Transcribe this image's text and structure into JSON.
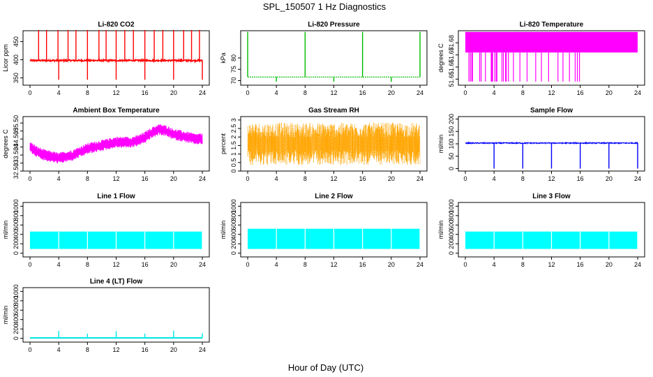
{
  "figure": {
    "title": "SPL_150507  1 Hz Diagnostics",
    "xlabel": "Hour of Day (UTC)"
  },
  "chart_data": [
    {
      "id": "co2",
      "type": "line",
      "title": "Li-820 CO2",
      "xlabel": "",
      "ylabel": "Licor ppm",
      "color": "#ff0000",
      "xlim": [
        0,
        24
      ],
      "ylim": [
        330,
        480
      ],
      "xticks": [
        0,
        4,
        8,
        12,
        16,
        20,
        24
      ],
      "yticks": [
        350,
        400,
        450
      ],
      "baseline": 398,
      "noise": 4,
      "spikes_up": [
        1.2,
        2.3,
        3.9,
        5.3,
        6.4,
        8.0,
        9.6,
        10.6,
        12.0,
        13.2,
        14.4,
        16.0,
        17.3,
        18.5,
        20.0,
        21.4,
        22.5,
        23.6
      ],
      "spike_up_value": 482,
      "spikes_down": [
        4.0,
        8.0,
        12.0,
        16.0,
        20.0,
        24.0
      ],
      "spike_down_value": 345
    },
    {
      "id": "pressure",
      "type": "line",
      "title": "Li-820 Pressure",
      "xlabel": "",
      "ylabel": "kPa",
      "color": "#00bb00",
      "xlim": [
        0,
        24
      ],
      "ylim": [
        68,
        92
      ],
      "xticks": [
        0,
        4,
        8,
        12,
        16,
        20,
        24
      ],
      "yticks": [
        70,
        75,
        80
      ],
      "baseline": 71.6,
      "spikes_up": [
        0.0,
        8.0,
        16.0,
        24.0
      ],
      "spike_up_value": 91.5,
      "spikes_down": [
        4.0,
        12.0,
        20.0
      ],
      "spike_down_value": 69.5
    },
    {
      "id": "licor_temp",
      "type": "area",
      "title": "Li-820 Temperature",
      "xlabel": "",
      "ylabel": "degrees C",
      "color": "#ff00ff",
      "xlim": [
        0,
        24
      ],
      "ylim": [
        51.645,
        51.69
      ],
      "xticks": [
        0,
        4,
        8,
        12,
        16,
        20,
        24
      ],
      "yticks": [
        51.65,
        51.66,
        51.67,
        51.68
      ],
      "band": [
        51.672,
        51.689
      ],
      "dropouts": [
        0.5,
        0.7,
        0.9,
        1.0,
        2.0,
        2.2,
        2.8,
        3.6,
        3.7,
        3.8,
        4.1,
        4.3,
        4.4,
        5.1,
        5.3,
        5.6,
        5.7,
        6.0,
        6.7,
        7.6,
        8.6,
        9.8,
        10.6,
        11.6,
        12.9,
        13.6,
        14.5,
        15.3,
        15.6,
        15.9
      ],
      "dropout_value": 51.648
    },
    {
      "id": "ambient",
      "type": "line",
      "title": "Ambient Box Temperature",
      "xlabel": "",
      "ylabel": "degrees C",
      "color": "#ff00ff",
      "xlim": [
        0,
        24
      ],
      "ylim": [
        32.5,
        35.9
      ],
      "xticks": [
        0,
        4,
        8,
        12,
        16,
        20,
        24
      ],
      "yticks": [
        32.5,
        33.0,
        33.5,
        34.0,
        34.5,
        35.0,
        35.5
      ],
      "x": [
        0,
        1,
        2,
        3,
        4,
        5,
        6,
        7,
        8,
        9,
        10,
        11,
        12,
        13,
        14,
        15,
        16,
        17,
        18,
        19,
        20,
        21,
        22,
        23,
        24
      ],
      "y": [
        34.0,
        33.7,
        33.5,
        33.4,
        33.3,
        33.4,
        33.5,
        33.7,
        33.9,
        34.0,
        34.1,
        34.2,
        34.3,
        34.3,
        34.3,
        34.4,
        34.6,
        34.9,
        35.1,
        35.0,
        34.8,
        34.7,
        34.6,
        34.5,
        34.5
      ],
      "amplitude": 0.35
    },
    {
      "id": "rh",
      "type": "line",
      "title": "Gas Stream RH",
      "xlabel": "",
      "ylabel": "percent",
      "color": "#ffa500",
      "xlim": [
        0,
        24
      ],
      "ylim": [
        0,
        3.2
      ],
      "xticks": [
        0,
        4,
        8,
        12,
        16,
        20,
        24
      ],
      "yticks": [
        0.0,
        0.5,
        1.0,
        1.5,
        2.0,
        2.5,
        3.0
      ],
      "center": 1.6,
      "amplitude": 1.25
    },
    {
      "id": "sample_flow",
      "type": "line",
      "title": "Sample Flow",
      "xlabel": "",
      "ylabel": "ml/min",
      "color": "#0000ff",
      "xlim": [
        0,
        24
      ],
      "ylim": [
        -10,
        210
      ],
      "xticks": [
        0,
        4,
        8,
        12,
        16,
        20,
        24
      ],
      "yticks": [
        0,
        50,
        100,
        150,
        200
      ],
      "baseline": 103,
      "dips": [
        4.0,
        8.0,
        12.0,
        16.0,
        20.0,
        24.0
      ],
      "dip_value": 0
    },
    {
      "id": "line1",
      "type": "area",
      "title": "Line 1 Flow",
      "xlabel": "",
      "ylabel": "ml/min",
      "color": "#00ffff",
      "xlim": [
        0,
        24
      ],
      "ylim": [
        -80,
        1080
      ],
      "xticks": [
        0,
        4,
        8,
        12,
        16,
        20,
        24
      ],
      "yticks": [
        0,
        200,
        400,
        600,
        800,
        1000
      ],
      "band": [
        90,
        460
      ],
      "gaps": [
        4.0,
        8.0,
        12.0,
        16.0,
        20.0,
        24.0
      ]
    },
    {
      "id": "line2",
      "type": "area",
      "title": "Line 2 Flow",
      "xlabel": "",
      "ylabel": "ml/min",
      "color": "#00ffff",
      "xlim": [
        0,
        24
      ],
      "ylim": [
        -80,
        1080
      ],
      "xticks": [
        0,
        4,
        8,
        12,
        16,
        20,
        24
      ],
      "yticks": [
        0,
        200,
        400,
        600,
        800,
        1000
      ],
      "band": [
        90,
        520
      ],
      "gaps": [
        4.0,
        8.0,
        12.0,
        16.0,
        20.0,
        24.0
      ]
    },
    {
      "id": "line3",
      "type": "area",
      "title": "Line 3 Flow",
      "xlabel": "",
      "ylabel": "ml/min",
      "color": "#00ffff",
      "xlim": [
        0,
        24
      ],
      "ylim": [
        -80,
        1080
      ],
      "xticks": [
        0,
        4,
        8,
        12,
        16,
        20,
        24
      ],
      "yticks": [
        0,
        200,
        400,
        600,
        800,
        1000
      ],
      "band": [
        90,
        460
      ],
      "gaps": [
        4.0,
        8.0,
        12.0,
        16.0,
        20.0,
        24.0
      ]
    },
    {
      "id": "line4",
      "type": "line",
      "title": "Line 4 (LT) Flow",
      "xlabel": "",
      "ylabel": "ml/min",
      "color": "#00e5e5",
      "xlim": [
        0,
        24
      ],
      "ylim": [
        -80,
        1080
      ],
      "xticks": [
        0,
        4,
        8,
        12,
        16,
        20,
        24
      ],
      "yticks": [
        0,
        200,
        400,
        600,
        800,
        1000
      ],
      "baseline": 10,
      "spikes_up": [
        4.0,
        8.0,
        12.0,
        16.0,
        20.0,
        24.0
      ],
      "spike_heights": [
        160,
        100,
        150,
        100,
        160,
        110
      ]
    }
  ]
}
